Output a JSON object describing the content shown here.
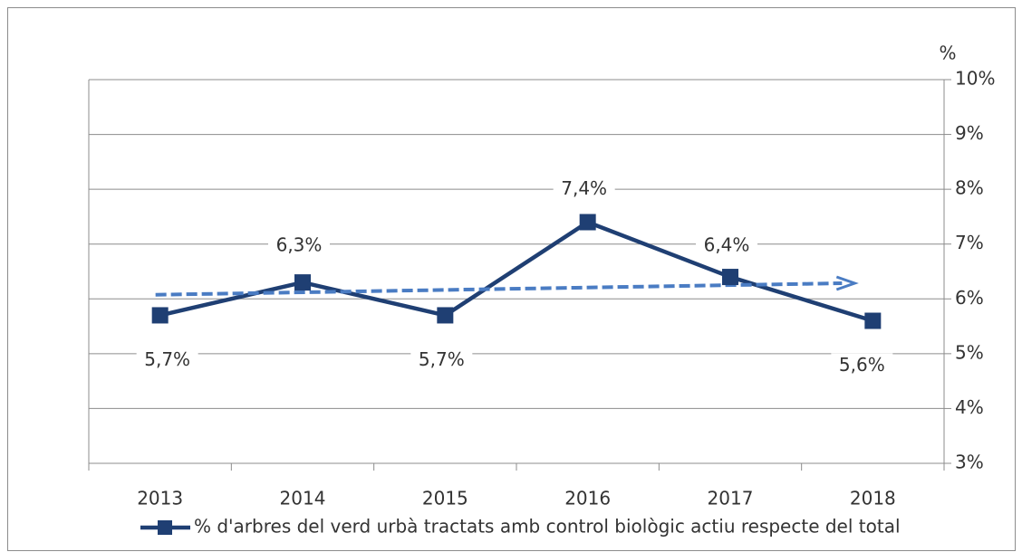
{
  "chart_data": {
    "type": "line",
    "y_unit_label": "%",
    "categories": [
      "2013",
      "2014",
      "2015",
      "2016",
      "2017",
      "2018"
    ],
    "series": [
      {
        "name": "% d'arbres del verd urbà tractats amb control biològic actiu respecte del total",
        "color": "#1f3f73",
        "values": [
          5.7,
          6.3,
          5.7,
          7.4,
          6.4,
          5.6
        ],
        "value_labels": [
          "5,7%",
          "6,3%",
          "5,7%",
          "7,4%",
          "6,4%",
          "5,6%"
        ]
      }
    ],
    "trendline": true,
    "trendline_color": "#4a7cc3",
    "ylim": [
      3,
      10
    ],
    "yticks": [
      {
        "value": 3,
        "label": "3%"
      },
      {
        "value": 4,
        "label": "4%"
      },
      {
        "value": 5,
        "label": "5%"
      },
      {
        "value": 6,
        "label": "6%"
      },
      {
        "value": 7,
        "label": "7%"
      },
      {
        "value": 8,
        "label": "8%"
      },
      {
        "value": 9,
        "label": "9%"
      },
      {
        "value": 10,
        "label": "10%"
      }
    ],
    "grid": true,
    "legend": "bottom"
  }
}
